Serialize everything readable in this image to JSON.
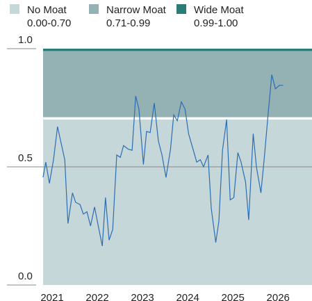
{
  "chart_data": {
    "type": "line",
    "bands": [
      {
        "name": "No Moat",
        "label": "0.00-0.70",
        "from": 0,
        "to": 0.7,
        "color": "#c6d7d9"
      },
      {
        "name": "Narrow Moat",
        "label": "0.71-0.99",
        "from": 0.71,
        "to": 0.99,
        "color": "#94b1b3"
      },
      {
        "name": "Wide Moat",
        "label": "0.99-1.00",
        "from": 0.99,
        "to": 1.0,
        "color": "#2b7b76"
      }
    ],
    "x": [
      2020.8,
      2020.86,
      2020.94,
      2021.03,
      2021.12,
      2021.2,
      2021.28,
      2021.35,
      2021.45,
      2021.52,
      2021.62,
      2021.69,
      2021.77,
      2021.85,
      2021.94,
      2022.02,
      2022.11,
      2022.18,
      2022.26,
      2022.34,
      2022.43,
      2022.51,
      2022.58,
      2022.68,
      2022.77,
      2022.85,
      2022.92,
      2023.02,
      2023.09,
      2023.17,
      2023.26,
      2023.35,
      2023.43,
      2023.52,
      2023.62,
      2023.69,
      2023.77,
      2023.86,
      2023.94,
      2024.02,
      2024.11,
      2024.2,
      2024.28,
      2024.35,
      2024.45,
      2024.52,
      2024.62,
      2024.69,
      2024.77,
      2024.86,
      2024.94,
      2025.02,
      2025.11,
      2025.18,
      2025.28,
      2025.35,
      2025.45,
      2025.52,
      2025.62,
      2025.69,
      2025.78,
      2025.86,
      2025.94,
      2026.03,
      2026.11
    ],
    "values": [
      0.456,
      0.52,
      0.43,
      0.53,
      0.67,
      0.6,
      0.53,
      0.26,
      0.39,
      0.35,
      0.34,
      0.3,
      0.31,
      0.25,
      0.33,
      0.25,
      0.165,
      0.37,
      0.19,
      0.235,
      0.55,
      0.54,
      0.59,
      0.575,
      0.57,
      0.8,
      0.745,
      0.51,
      0.65,
      0.645,
      0.77,
      0.61,
      0.55,
      0.455,
      0.575,
      0.72,
      0.695,
      0.775,
      0.745,
      0.64,
      0.58,
      0.52,
      0.53,
      0.5,
      0.55,
      0.325,
      0.18,
      0.27,
      0.57,
      0.7,
      0.36,
      0.37,
      0.56,
      0.52,
      0.435,
      0.275,
      0.64,
      0.5,
      0.39,
      0.53,
      0.725,
      0.89,
      0.83,
      0.845,
      0.845
    ],
    "color": "#2a6db3",
    "xlim": [
      2020.8,
      2026.75
    ],
    "xticks": [
      2021,
      2022,
      2023,
      2024,
      2025,
      2026
    ],
    "ylim": [
      0,
      1
    ],
    "yticks": [
      {
        "value": 0,
        "label": "0.0"
      },
      {
        "value": 0.5,
        "label": "0.5"
      },
      {
        "value": 1,
        "label": "1.0"
      }
    ]
  }
}
